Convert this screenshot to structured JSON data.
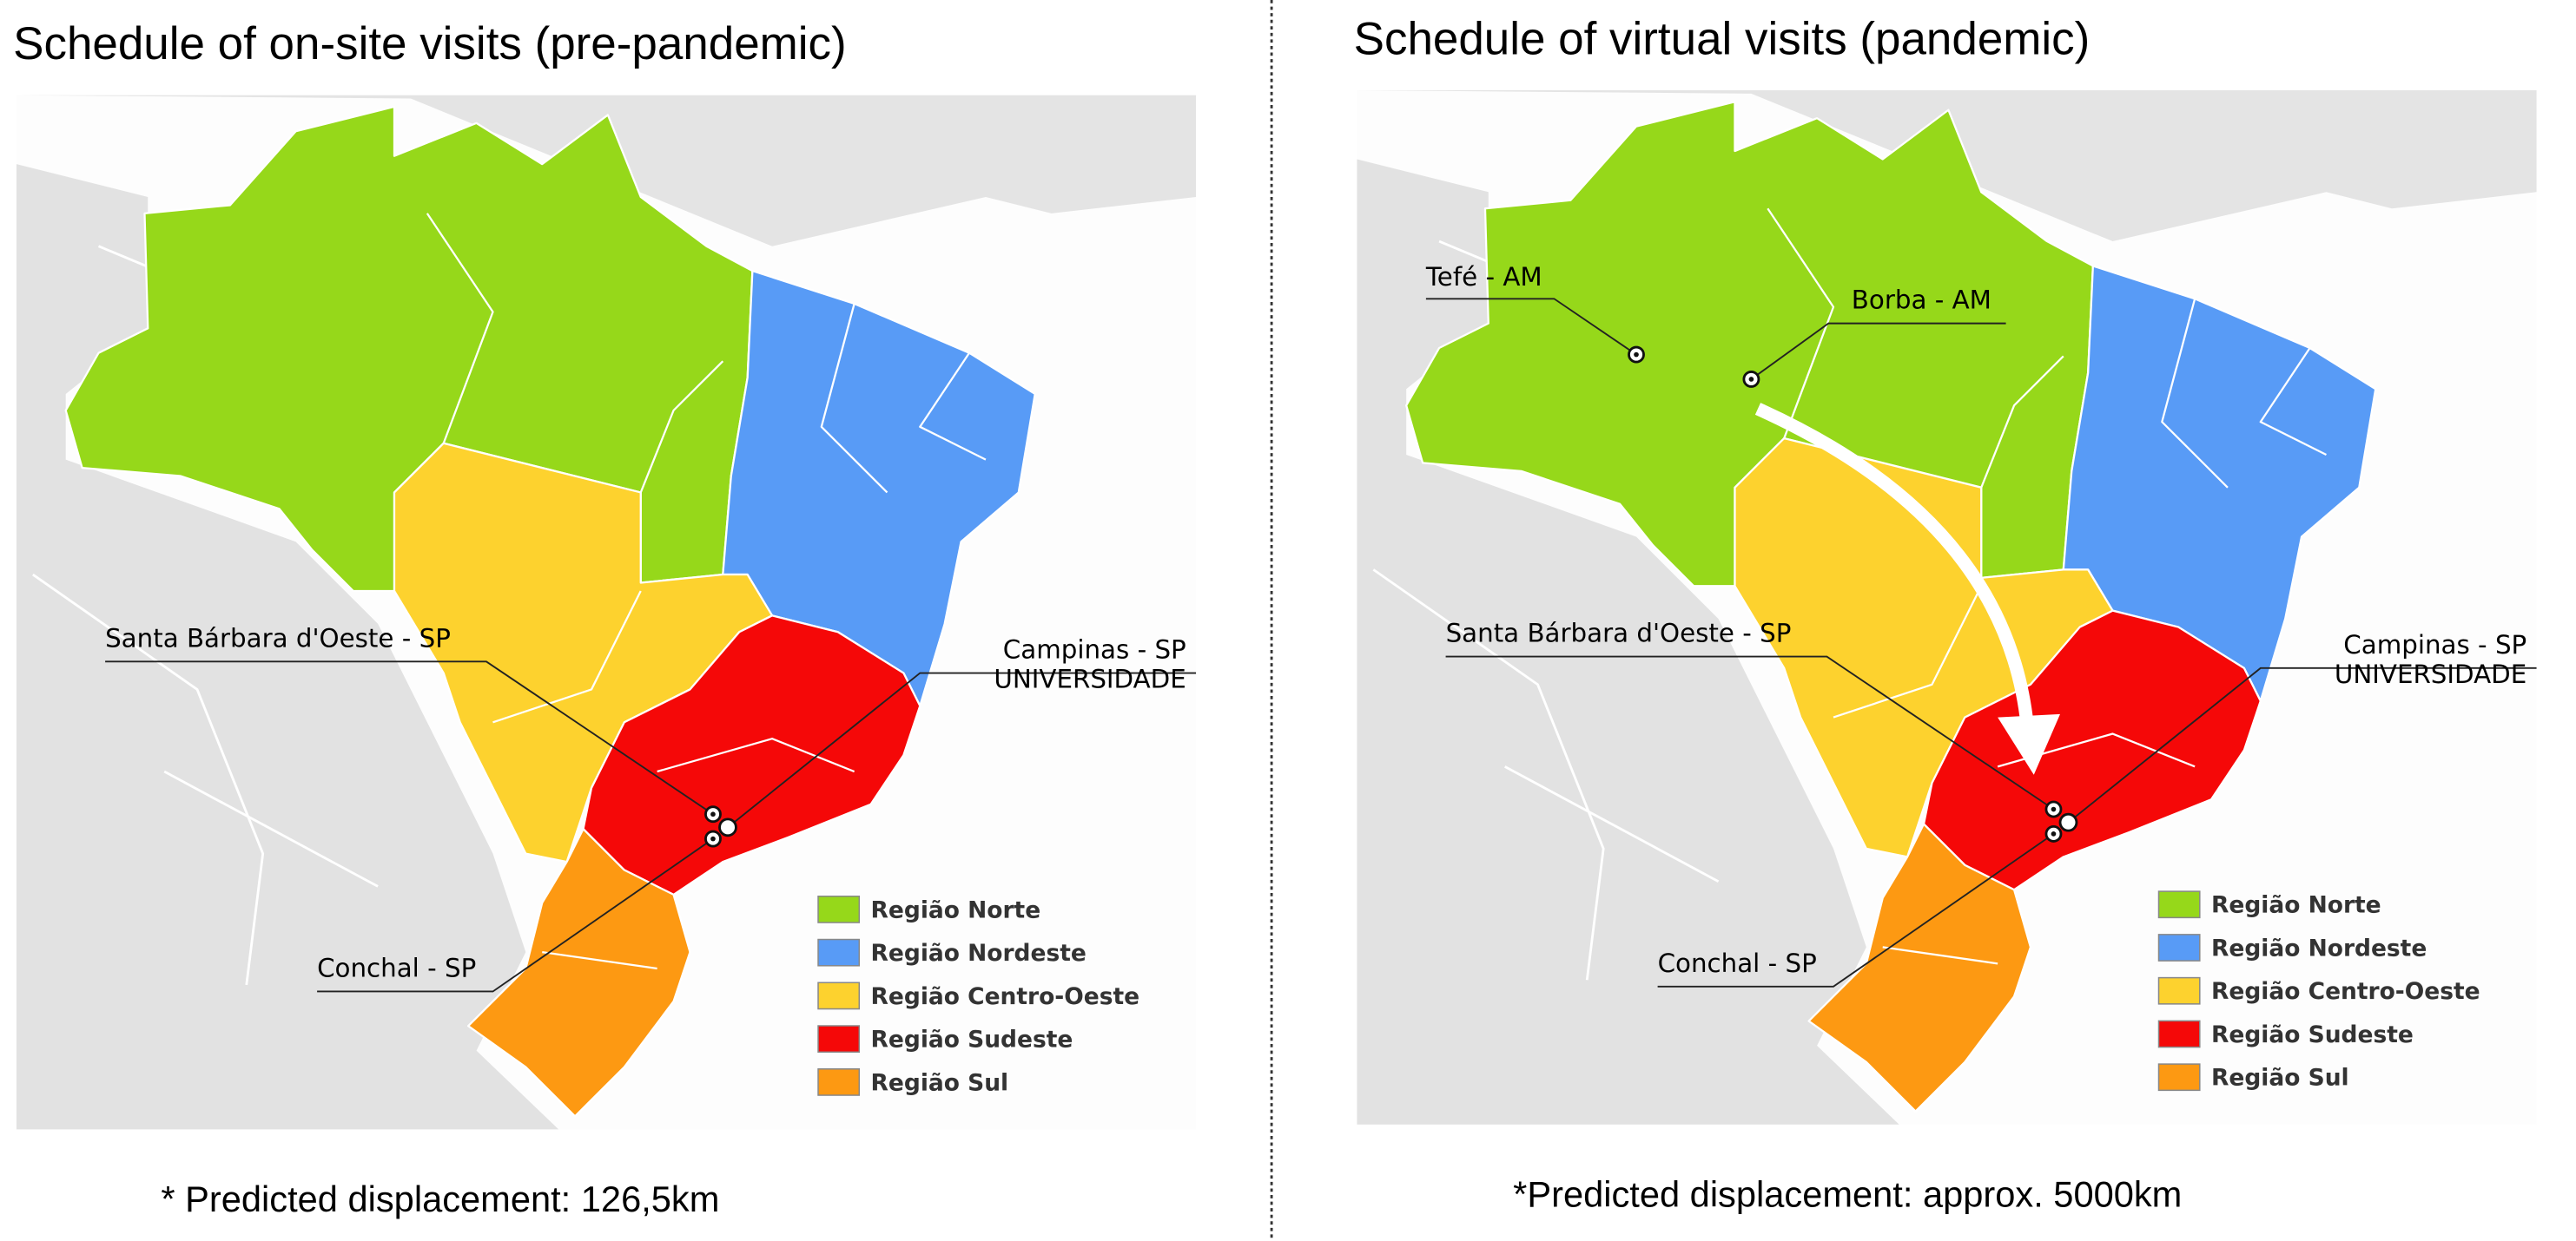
{
  "panels": [
    {
      "title": "Schedule of on-site visits (pre-pandemic)",
      "places": [
        {
          "label": "Santa Bárbara d'Oeste - SP"
        },
        {
          "label": "Campinas - SP",
          "sublabel": "UNIVERSIDADE"
        },
        {
          "label": "Conchal - SP"
        }
      ],
      "legend": [
        {
          "label": "Região Norte",
          "color": "#96d81a"
        },
        {
          "label": "Região Nordeste",
          "color": "#589bf6"
        },
        {
          "label": "Região Centro-Oeste",
          "color": "#fdd22e"
        },
        {
          "label": "Região Sudeste",
          "color": "#f50808"
        },
        {
          "label": "Região Sul",
          "color": "#fd9912"
        }
      ],
      "footnote": "* Predicted displacement: 126,5km"
    },
    {
      "title": "Schedule of virtual visits (pandemic)",
      "places": [
        {
          "label": "Tefé - AM"
        },
        {
          "label": "Borba - AM"
        },
        {
          "label": "Santa Bárbara d'Oeste - SP"
        },
        {
          "label": "Campinas - SP",
          "sublabel": "UNIVERSIDADE"
        },
        {
          "label": "Conchal - SP"
        }
      ],
      "legend": [
        {
          "label": "Região Norte",
          "color": "#96d81a"
        },
        {
          "label": "Região Nordeste",
          "color": "#589bf6"
        },
        {
          "label": "Região Centro-Oeste",
          "color": "#fdd22e"
        },
        {
          "label": "Região Sudeste",
          "color": "#f50808"
        },
        {
          "label": "Região Sul",
          "color": "#fd9912"
        }
      ],
      "footnote": "*Predicted displacement: approx. 5000km"
    }
  ]
}
